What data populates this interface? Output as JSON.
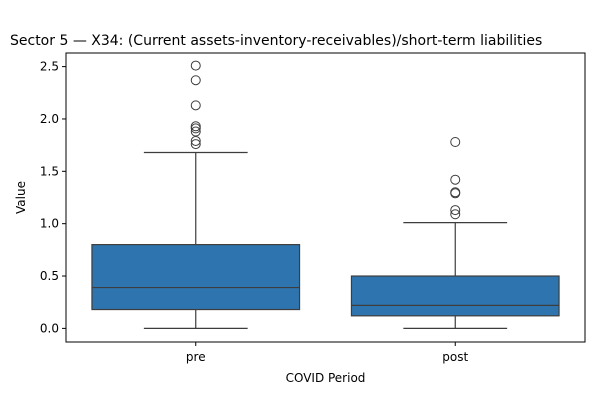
{
  "chart_data": {
    "type": "box",
    "title": "Sector 5 — X34: (Current assets-inventory-receivables)/short-term liabilities",
    "xlabel": "COVID Period",
    "ylabel": "Value",
    "categories": [
      "pre",
      "post"
    ],
    "ylim": [
      -0.13,
      2.63
    ],
    "yticks": [
      0.0,
      0.5,
      1.0,
      1.5,
      2.0,
      2.5
    ],
    "ytick_labels": [
      "0.0",
      "0.5",
      "1.0",
      "1.5",
      "2.0",
      "2.5"
    ],
    "grid": false,
    "box_color": "#2e75b0",
    "line_color": "#3d3d3d",
    "boxes": [
      {
        "category": "pre",
        "whisker_low": 0.0,
        "q1": 0.18,
        "median": 0.39,
        "q3": 0.8,
        "whisker_high": 1.68,
        "outliers": [
          1.76,
          1.79,
          1.88,
          1.91,
          1.93,
          2.13,
          2.37,
          2.51
        ]
      },
      {
        "category": "post",
        "whisker_low": 0.0,
        "q1": 0.12,
        "median": 0.22,
        "q3": 0.5,
        "whisker_high": 1.01,
        "outliers": [
          1.09,
          1.13,
          1.29,
          1.3,
          1.42,
          1.78
        ]
      }
    ]
  }
}
